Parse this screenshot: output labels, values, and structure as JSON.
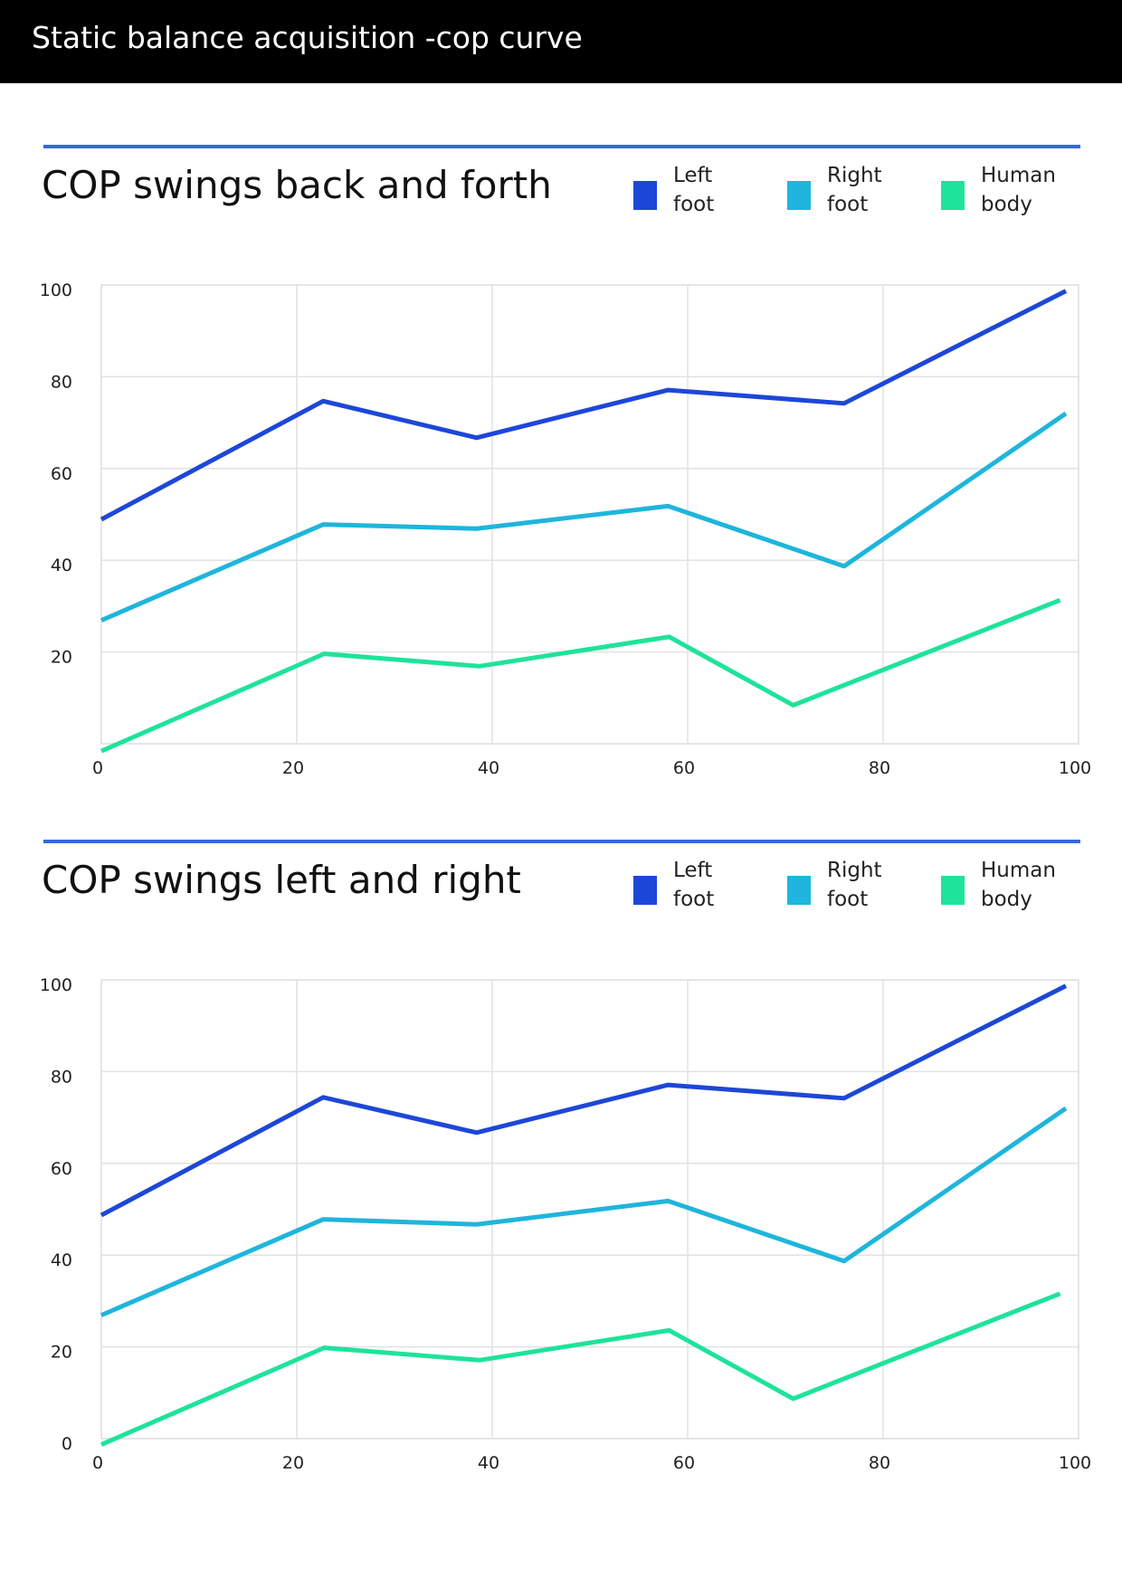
{
  "page_title": "Static balance acquisition -cop curve",
  "chart_data": [
    {
      "type": "line",
      "title": "COP swings back and forth",
      "grid": true,
      "legend": "top-right",
      "xlim": [
        0,
        100
      ],
      "xticks": [
        0,
        20,
        40,
        60,
        80,
        100
      ],
      "ylim": [
        0,
        100
      ],
      "yticks": [
        20,
        40,
        60,
        80,
        100
      ],
      "series": [
        {
          "name": "Left foot",
          "color": "#1d47d8",
          "x": [
            0,
            22.7,
            38.4,
            58.0,
            76.0,
            98.7
          ],
          "values": [
            48.9,
            74.7,
            66.7,
            77.1,
            74.2,
            98.7
          ]
        },
        {
          "name": "Right foot",
          "color": "#1fb5dc",
          "x": [
            0,
            22.7,
            38.4,
            58.0,
            76.0,
            98.7
          ],
          "values": [
            26.9,
            47.8,
            46.9,
            51.8,
            38.7,
            72.0
          ]
        },
        {
          "name": "Human body",
          "color": "#1ee39a",
          "x": [
            0,
            22.8,
            38.7,
            58.1,
            70.8,
            98.1
          ],
          "values": [
            -1.6,
            19.6,
            16.9,
            23.3,
            8.4,
            31.3
          ]
        }
      ]
    },
    {
      "type": "line",
      "title": "COP swings left and right",
      "grid": true,
      "legend": "top-right",
      "xlim": [
        0,
        100
      ],
      "xticks": [
        0,
        20,
        40,
        60,
        80,
        100
      ],
      "ylim": [
        0,
        100
      ],
      "yticks": [
        0,
        20,
        40,
        60,
        80,
        100
      ],
      "series": [
        {
          "name": "Left foot",
          "color": "#1d47d8",
          "x": [
            0,
            22.7,
            38.4,
            58.0,
            76.0,
            98.7
          ],
          "values": [
            48.7,
            74.4,
            66.7,
            77.1,
            74.2,
            98.7
          ]
        },
        {
          "name": "Right foot",
          "color": "#1fb5dc",
          "x": [
            0,
            22.7,
            38.4,
            58.0,
            76.0,
            98.7
          ],
          "values": [
            26.9,
            47.8,
            46.7,
            51.8,
            38.7,
            72.0
          ]
        },
        {
          "name": "Human body",
          "color": "#1ee39a",
          "x": [
            0,
            22.8,
            38.7,
            58.1,
            70.8,
            98.1
          ],
          "values": [
            -1.3,
            19.8,
            17.1,
            23.6,
            8.7,
            31.6
          ]
        }
      ]
    }
  ]
}
